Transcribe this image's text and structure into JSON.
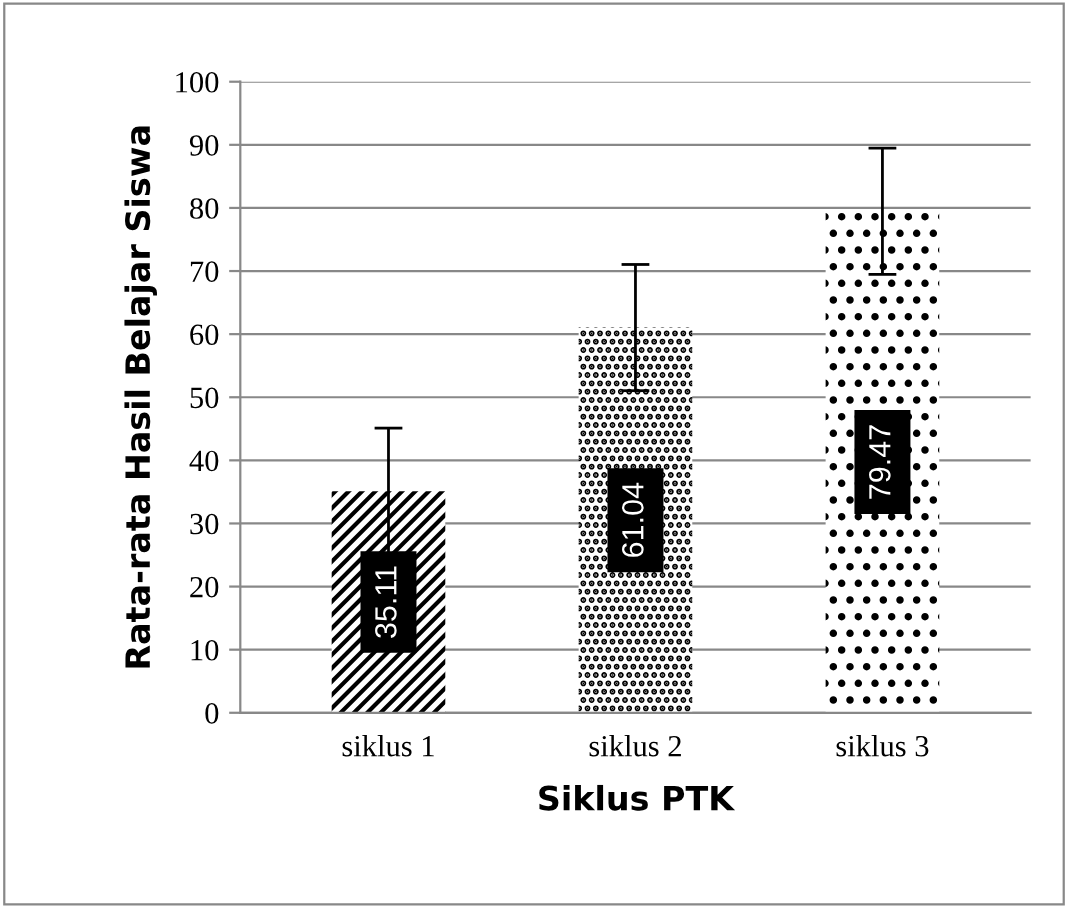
{
  "chart_data": {
    "type": "bar",
    "xlabel": "Siklus PTK",
    "ylabel": "Rata-rata Hasil Belajar Siswa",
    "categories": [
      "siklus 1",
      "siklus 2",
      "siklus 3"
    ],
    "values": [
      35.11,
      61.04,
      79.47
    ],
    "colors": [
      "#000000",
      "#000000",
      "#000000"
    ],
    "errors": [
      10,
      10,
      10
    ],
    "ylim": [
      0,
      100
    ],
    "yticks": [
      0,
      10,
      20,
      30,
      40,
      50,
      60,
      70,
      80,
      90,
      100
    ],
    "grid": "y",
    "data_labels": true
  }
}
